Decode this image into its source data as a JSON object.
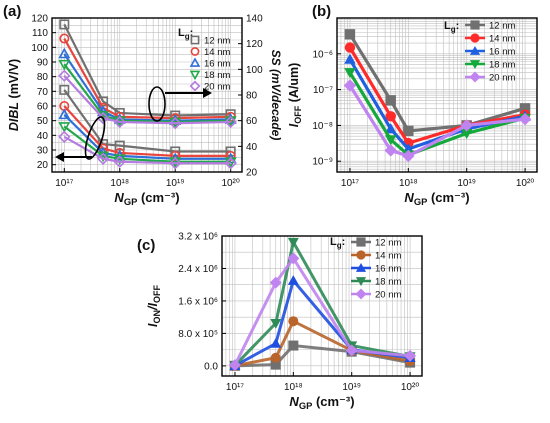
{
  "chart_data": [
    {
      "panel": "(a)",
      "type": "line",
      "x": [
        1e+17,
        5e+17,
        1e+18,
        1e+19,
        1e+20
      ],
      "x_scale": "log",
      "xlim": [
        6e+16,
        1.6e+20
      ],
      "x_ticks": [
        1e+17,
        1e+18,
        1e+19,
        1e+20
      ],
      "x_tick_labels": [
        "10¹⁷",
        "10¹⁸",
        "10¹⁹",
        "10²⁰"
      ],
      "xlabel": {
        "main": "N",
        "sub": "GP",
        "unit": " (cm⁻³)"
      },
      "ylabel": {
        "main": "DIBL",
        "unit": " (mV/V)"
      },
      "ylim": [
        15,
        120
      ],
      "y_ticks": [
        20,
        30,
        40,
        50,
        60,
        70,
        80,
        90,
        100,
        110,
        120
      ],
      "y2label": "SS (mV/decade)",
      "y2lim": [
        20,
        140
      ],
      "y2_ticks": [
        20,
        40,
        60,
        80,
        100,
        120,
        140
      ],
      "legend_title": "L",
      "legend_title_sub": "g",
      "legend_suffix": ":",
      "legend_position": "top-right",
      "grid": true,
      "series": [
        {
          "name": "12 nm",
          "color": "#707070",
          "marker": "square",
          "dibl": [
            71,
            34,
            33,
            29,
            29
          ],
          "ss": [
            135,
            75,
            66,
            64,
            65
          ]
        },
        {
          "name": "14 nm",
          "color": "#e8453c",
          "marker": "circle",
          "dibl": [
            60,
            31,
            28,
            26,
            26
          ],
          "ss": [
            124,
            70,
            63,
            62,
            63
          ]
        },
        {
          "name": "16 nm",
          "color": "#2e6fd8",
          "marker": "triangle-up",
          "dibl": [
            54,
            28,
            26,
            24,
            24
          ],
          "ss": [
            112,
            67,
            61,
            60,
            61
          ]
        },
        {
          "name": "18 nm",
          "color": "#22a84a",
          "marker": "triangle-down",
          "dibl": [
            46,
            26,
            24,
            22,
            22
          ],
          "ss": [
            104,
            64,
            60,
            59,
            60
          ]
        },
        {
          "name": "20 nm",
          "color": "#b57be0",
          "marker": "diamond",
          "dibl": [
            39,
            24,
            22,
            21,
            21
          ],
          "ss": [
            95,
            62,
            59,
            58,
            59
          ]
        }
      ]
    },
    {
      "panel": "(b)",
      "type": "line",
      "x": [
        1e+17,
        5e+17,
        1e+18,
        1e+19,
        1e+20
      ],
      "x_scale": "log",
      "xlim": [
        6e+16,
        1.6e+20
      ],
      "x_ticks": [
        1e+17,
        1e+18,
        1e+19,
        1e+20
      ],
      "x_tick_labels": [
        "10¹⁷",
        "10¹⁸",
        "10¹⁹",
        "10²⁰"
      ],
      "xlabel": {
        "main": "N",
        "sub": "GP",
        "unit": " (cm⁻³)"
      },
      "ylabel": {
        "main": "I",
        "sub": "OFF",
        "unit": " (A/um)"
      },
      "y_scale": "log",
      "ylim": [
        5e-10,
        1e-05
      ],
      "y_ticks": [
        1e-09,
        1e-08,
        1e-07,
        1e-06
      ],
      "y_tick_labels": [
        "10⁻⁹",
        "10⁻⁸",
        "10⁻⁷",
        "10⁻⁶"
      ],
      "legend_title": "L",
      "legend_title_sub": "g",
      "legend_suffix": ":",
      "legend_position": "top-right",
      "grid": true,
      "series": [
        {
          "name": "12 nm",
          "color": "#707070",
          "marker": "square",
          "values": [
            3.5e-06,
            5e-08,
            7e-09,
            1e-08,
            3e-08
          ]
        },
        {
          "name": "14 nm",
          "color": "#ff2a2a",
          "marker": "circle",
          "values": [
            1.5e-06,
            1.8e-08,
            3.2e-09,
            1e-08,
            2e-08
          ]
        },
        {
          "name": "16 nm",
          "color": "#1f5fe0",
          "marker": "triangle-up",
          "values": [
            7e-07,
            8e-09,
            2.2e-09,
            8e-09,
            1.8e-08
          ]
        },
        {
          "name": "18 nm",
          "color": "#15a83a",
          "marker": "triangle-down",
          "values": [
            3e-07,
            4e-09,
            1.5e-09,
            6e-09,
            1.6e-08
          ]
        },
        {
          "name": "20 nm",
          "color": "#c084f0",
          "marker": "diamond",
          "values": [
            1.3e-07,
            2e-09,
            1.4e-09,
            1e-08,
            1.5e-08
          ]
        }
      ]
    },
    {
      "panel": "(c)",
      "type": "line",
      "x": [
        1e+17,
        5e+17,
        1e+18,
        1e+19,
        1e+20
      ],
      "x_scale": "log",
      "xlim": [
        6e+16,
        1.6e+20
      ],
      "x_ticks": [
        1e+17,
        1e+18,
        1e+19,
        1e+20
      ],
      "x_tick_labels": [
        "10¹⁷",
        "10¹⁸",
        "10¹⁹",
        "10²⁰"
      ],
      "xlabel": {
        "main": "N",
        "sub": "GP",
        "unit": " (cm⁻³)"
      },
      "ylabel": {
        "main": "I",
        "sub": "ON",
        "slash": "/I",
        "sub2": "OFF"
      },
      "ylim": [
        -250000,
        3200000
      ],
      "y_ticks": [
        0,
        800000,
        1600000,
        2400000,
        3200000
      ],
      "y_tick_labels": [
        "0.0",
        "8.0 x 10⁵",
        "1.6 x 10⁶",
        "2.4 x 10⁶",
        "3.2 x 10⁶"
      ],
      "legend_title": "L",
      "legend_title_sub": "g",
      "legend_suffix": ":",
      "legend_position": "top-right",
      "grid": true,
      "series": [
        {
          "name": "12 nm",
          "color": "#707070",
          "marker": "square",
          "values": [
            1000,
            30000,
            500000,
            350000,
            80000
          ]
        },
        {
          "name": "14 nm",
          "color": "#b8642a",
          "marker": "circle",
          "values": [
            2000,
            200000,
            1100000,
            380000,
            120000
          ]
        },
        {
          "name": "16 nm",
          "color": "#1f4fe0",
          "marker": "triangle-up",
          "values": [
            5000,
            550000,
            2100000,
            400000,
            200000
          ]
        },
        {
          "name": "18 nm",
          "color": "#2e8b57",
          "marker": "triangle-down",
          "values": [
            10000,
            1050000,
            3050000,
            500000,
            230000
          ]
        },
        {
          "name": "20 nm",
          "color": "#c084f0",
          "marker": "diamond",
          "values": [
            20000,
            2050000,
            2650000,
            380000,
            250000
          ]
        }
      ]
    }
  ]
}
